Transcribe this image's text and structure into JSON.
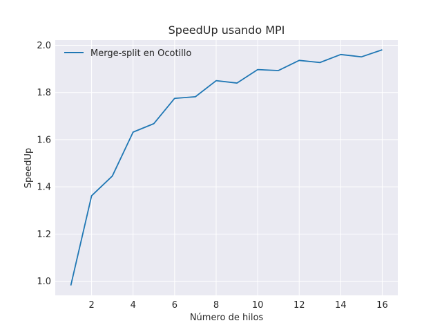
{
  "chart_data": {
    "type": "line",
    "title": "SpeedUp usando MPI",
    "xlabel": "Número de hilos",
    "ylabel": "SpeedUp",
    "xlim": [
      0.25,
      16.75
    ],
    "ylim": [
      0.94,
      2.022
    ],
    "xticks": [
      2,
      4,
      6,
      8,
      10,
      12,
      14,
      16
    ],
    "yticks": [
      1.0,
      1.2,
      1.4,
      1.6,
      1.8,
      2.0
    ],
    "grid": true,
    "legend_position": "top-left",
    "series": [
      {
        "name": "Merge-split en Ocotillo",
        "color": "#1f77b4",
        "x": [
          1,
          2,
          3,
          4,
          5,
          6,
          7,
          8,
          9,
          10,
          11,
          12,
          13,
          14,
          15,
          16
        ],
        "y": [
          0.982,
          1.362,
          1.446,
          1.632,
          1.668,
          1.775,
          1.782,
          1.85,
          1.84,
          1.897,
          1.893,
          1.936,
          1.927,
          1.961,
          1.951,
          1.981
        ]
      }
    ]
  }
}
